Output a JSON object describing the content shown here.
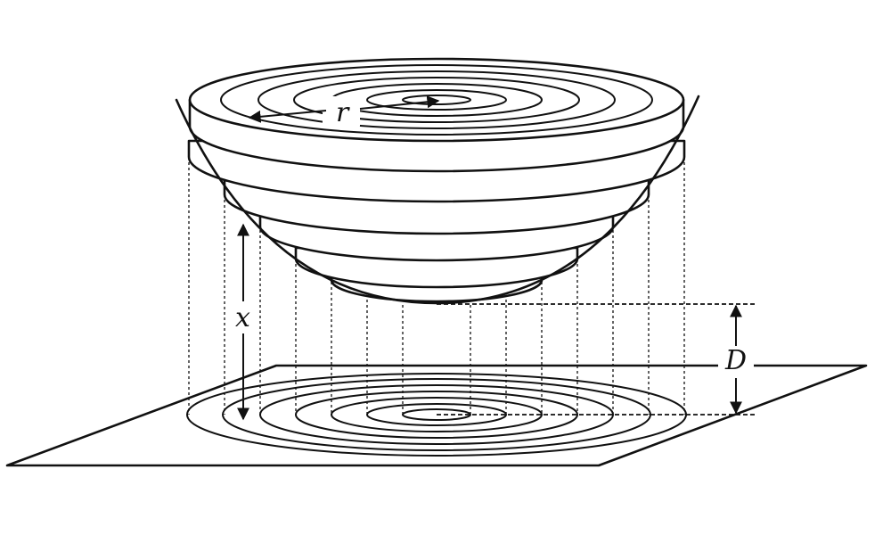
{
  "labels": {
    "radius": "r",
    "height": "x",
    "distance": "D"
  }
}
